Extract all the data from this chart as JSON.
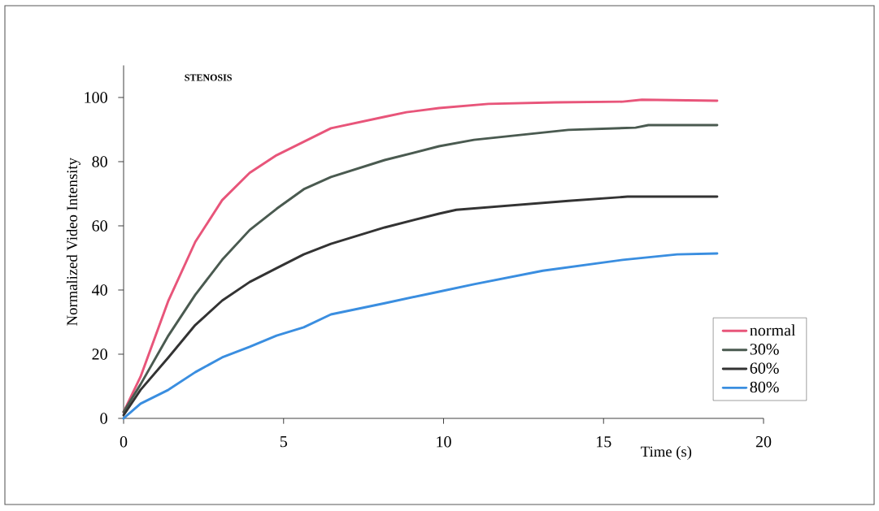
{
  "chart_data": {
    "type": "line",
    "title": "STENOSIS",
    "xlabel": "Time (s)",
    "ylabel": "Normalized Video Intensity",
    "xlim": [
      0,
      20
    ],
    "ylim": [
      0,
      110
    ],
    "xticks": [
      0,
      5,
      10,
      15,
      20
    ],
    "yticks": [
      0,
      20,
      40,
      60,
      80,
      100
    ],
    "grid": false,
    "legend": "bottom right",
    "series": [
      {
        "name": "normal",
        "color": "#e8557a",
        "x": [
          0,
          0.53,
          1.4,
          2.24,
          3.08,
          3.94,
          4.78,
          6.48,
          8.16,
          8.84,
          9.86,
          11.4,
          13.5,
          15.6,
          16.2,
          18.55
        ],
        "values": [
          2,
          13,
          36.7,
          55,
          68,
          76.5,
          82,
          90.4,
          94,
          95.4,
          96.7,
          98,
          98.5,
          98.7,
          99.3,
          99
        ]
      },
      {
        "name": "30%",
        "color": "#4a5a50",
        "x": [
          0,
          0.53,
          1.4,
          2.24,
          3.08,
          3.94,
          4.78,
          5.63,
          6.48,
          8.16,
          9.86,
          10.95,
          13.9,
          16.0,
          16.4,
          18.55
        ],
        "values": [
          2,
          10.6,
          25.8,
          38.5,
          49.4,
          58.7,
          65.3,
          71.4,
          75.2,
          80.5,
          84.8,
          86.8,
          89.9,
          90.6,
          91.4,
          91.4
        ]
      },
      {
        "name": "60%",
        "color": "#333333",
        "x": [
          0,
          0.53,
          1.4,
          2.24,
          3.08,
          3.94,
          4.78,
          5.63,
          6.48,
          8.16,
          9.86,
          10.4,
          13.9,
          15.75,
          18.55
        ],
        "values": [
          1,
          8.9,
          19,
          29.1,
          36.7,
          42.5,
          46.8,
          51.1,
          54.4,
          59.5,
          63.8,
          65,
          67.8,
          69.1,
          69.1
        ]
      },
      {
        "name": "80%",
        "color": "#3a8ee0",
        "x": [
          0,
          0.53,
          1.4,
          2.24,
          3.08,
          3.94,
          4.78,
          5.63,
          6.48,
          8.16,
          9.86,
          10.95,
          13.1,
          15.6,
          17.3,
          18.55
        ],
        "values": [
          0,
          4.6,
          8.9,
          14.4,
          19,
          22.3,
          25.8,
          28.4,
          32.4,
          35.9,
          39.5,
          41.8,
          46,
          49.4,
          51.1,
          51.4
        ]
      }
    ]
  }
}
